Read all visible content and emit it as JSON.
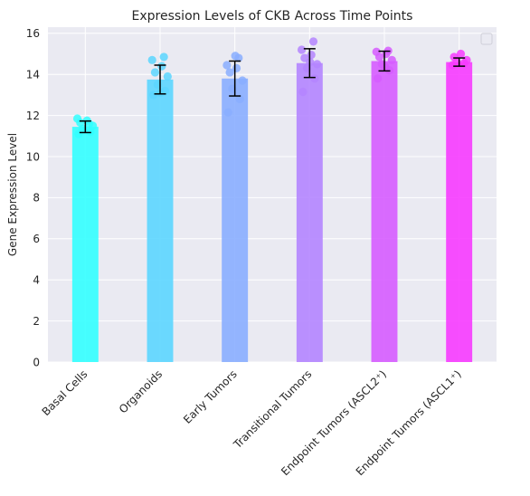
{
  "chart_data": {
    "type": "bar",
    "title": "Expression Levels of CKB Across Time Points",
    "xlabel": "",
    "ylabel": "Gene Expression Level",
    "ylim": [
      0,
      16.3
    ],
    "yticks": [
      0,
      2,
      4,
      6,
      8,
      10,
      12,
      14,
      16
    ],
    "grid": true,
    "legend": "top-right (empty box)",
    "categories": [
      "Basal Cells",
      "Organoids",
      "Early Tumors",
      "Transitional Tumors",
      "Endpoint Tumors (ASCL2⁺)",
      "Endpoint Tumors (ASCL1⁺)"
    ],
    "values": [
      11.45,
      13.75,
      13.8,
      14.55,
      14.65,
      14.6
    ],
    "errors": [
      0.28,
      0.7,
      0.85,
      0.7,
      0.48,
      0.2
    ],
    "colors": [
      "#33ffff",
      "#5cd6ff",
      "#8aaeff",
      "#b485ff",
      "#d65cff",
      "#f73bff"
    ],
    "points": [
      [
        11.1,
        11.2,
        11.35,
        11.5,
        11.65,
        11.75,
        11.85,
        11.6
      ],
      [
        13.0,
        13.2,
        13.5,
        13.9,
        14.1,
        14.4,
        14.7,
        14.85,
        13.1
      ],
      [
        12.15,
        12.8,
        13.3,
        13.7,
        14.1,
        14.3,
        14.45,
        14.8,
        14.9
      ],
      [
        13.15,
        13.8,
        14.3,
        14.5,
        14.8,
        14.95,
        15.2,
        15.6,
        14.6
      ],
      [
        13.8,
        14.2,
        14.5,
        14.7,
        14.85,
        15.0,
        15.1,
        15.15,
        14.4
      ],
      [
        14.45,
        14.55,
        14.6,
        14.7,
        14.85,
        15.0
      ]
    ]
  }
}
